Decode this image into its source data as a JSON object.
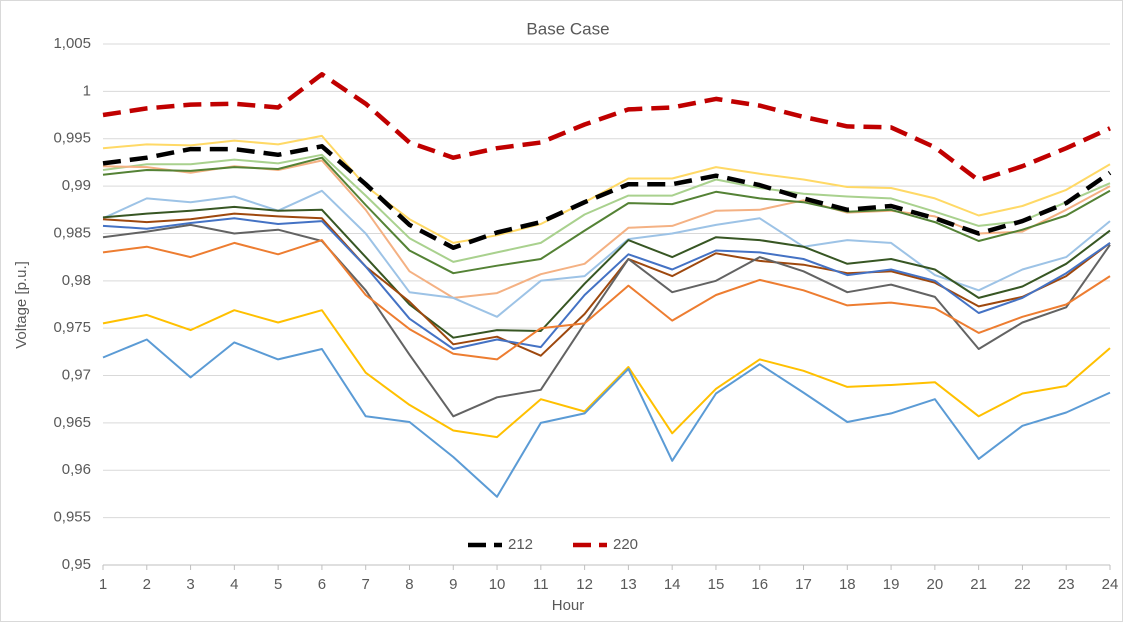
{
  "chart_data": {
    "type": "line",
    "title": "Base Case",
    "x_label": "Hour",
    "y_label": "Voltage [p.u.]",
    "x": [
      1,
      2,
      3,
      4,
      5,
      6,
      7,
      8,
      9,
      10,
      11,
      12,
      13,
      14,
      15,
      16,
      17,
      18,
      19,
      20,
      21,
      22,
      23,
      24
    ],
    "xlim": [
      1,
      24
    ],
    "xticks": [
      1,
      2,
      3,
      4,
      5,
      6,
      7,
      8,
      9,
      10,
      11,
      12,
      13,
      14,
      15,
      16,
      17,
      18,
      19,
      20,
      21,
      22,
      23,
      24
    ],
    "ylim": [
      0.95,
      1.005
    ],
    "yticks": [
      {
        "value": 0.95,
        "label": "0,95"
      },
      {
        "value": 0.955,
        "label": "0,955"
      },
      {
        "value": 0.96,
        "label": "0,96"
      },
      {
        "value": 0.965,
        "label": "0,965"
      },
      {
        "value": 0.97,
        "label": "0,97"
      },
      {
        "value": 0.975,
        "label": "0,975"
      },
      {
        "value": 0.98,
        "label": "0,98"
      },
      {
        "value": 0.985,
        "label": "0,985"
      },
      {
        "value": 0.99,
        "label": "0,99"
      },
      {
        "value": 0.995,
        "label": "0,995"
      },
      1,
      {
        "value": 1.005,
        "label": "1,005"
      }
    ],
    "grid": true,
    "legend": "bottom",
    "series": [
      {
        "color": "#ffd966",
        "values": [
          0.994,
          0.9944,
          0.9943,
          0.9948,
          0.9944,
          0.9953,
          0.99,
          0.9865,
          0.984,
          0.9848,
          0.986,
          0.9883,
          0.9908,
          0.9908,
          0.992,
          0.9913,
          0.9907,
          0.9899,
          0.9898,
          0.9887,
          0.9869,
          0.9879,
          0.9896,
          0.9923
        ]
      },
      {
        "color": "#a9d18e",
        "values": [
          0.9917,
          0.9923,
          0.9923,
          0.9928,
          0.9924,
          0.9933,
          0.989,
          0.9845,
          0.982,
          0.983,
          0.984,
          0.987,
          0.989,
          0.989,
          0.9907,
          0.9898,
          0.9892,
          0.9889,
          0.9887,
          0.9873,
          0.9858,
          0.9863,
          0.9883,
          0.9903
        ]
      },
      {
        "color": "#f4b183",
        "values": [
          0.9921,
          0.992,
          0.9914,
          0.9921,
          0.9917,
          0.9927,
          0.9875,
          0.981,
          0.9782,
          0.9787,
          0.9807,
          0.9818,
          0.9856,
          0.9858,
          0.9874,
          0.9875,
          0.9885,
          0.9872,
          0.9874,
          0.9868,
          0.985,
          0.9852,
          0.9875,
          0.99
        ]
      },
      {
        "color": "#548235",
        "values": [
          0.9912,
          0.9917,
          0.9916,
          0.992,
          0.9918,
          0.993,
          0.988,
          0.9832,
          0.9808,
          0.9816,
          0.9823,
          0.9853,
          0.9882,
          0.9881,
          0.9894,
          0.9887,
          0.9883,
          0.9873,
          0.9875,
          0.9862,
          0.9842,
          0.9854,
          0.9869,
          0.9895
        ]
      },
      {
        "color": "#9dc3e6",
        "values": [
          0.9866,
          0.9887,
          0.9883,
          0.9889,
          0.9874,
          0.9895,
          0.985,
          0.9788,
          0.9782,
          0.9762,
          0.98,
          0.9805,
          0.9844,
          0.985,
          0.9859,
          0.9866,
          0.9836,
          0.9843,
          0.984,
          0.9806,
          0.979,
          0.9812,
          0.9825,
          0.9863
        ]
      },
      {
        "color": "#375623",
        "values": [
          0.9867,
          0.9871,
          0.9874,
          0.9878,
          0.9874,
          0.9875,
          0.9825,
          0.9775,
          0.974,
          0.9748,
          0.9747,
          0.9797,
          0.9843,
          0.9825,
          0.9846,
          0.9843,
          0.9836,
          0.9818,
          0.9823,
          0.9812,
          0.9782,
          0.9794,
          0.9818,
          0.9853
        ]
      },
      {
        "color": "#9e480e",
        "values": [
          0.9865,
          0.9862,
          0.9865,
          0.9871,
          0.9868,
          0.9866,
          0.9815,
          0.9778,
          0.9733,
          0.9741,
          0.9721,
          0.9765,
          0.9823,
          0.9805,
          0.9829,
          0.9821,
          0.9817,
          0.9808,
          0.981,
          0.9798,
          0.9773,
          0.9783,
          0.9805,
          0.984
        ]
      },
      {
        "color": "#4472c4",
        "values": [
          0.9858,
          0.9855,
          0.9861,
          0.9866,
          0.986,
          0.9863,
          0.9815,
          0.976,
          0.9728,
          0.9738,
          0.973,
          0.9785,
          0.9828,
          0.9812,
          0.9832,
          0.983,
          0.9823,
          0.9806,
          0.9812,
          0.98,
          0.9766,
          0.9782,
          0.9808,
          0.984
        ]
      },
      {
        "color": "#636363",
        "values": [
          0.9846,
          0.9852,
          0.9859,
          0.985,
          0.9854,
          0.9842,
          0.979,
          0.9722,
          0.9657,
          0.9677,
          0.9685,
          0.9755,
          0.9823,
          0.9788,
          0.98,
          0.9825,
          0.981,
          0.9788,
          0.9796,
          0.9783,
          0.9728,
          0.9756,
          0.9772,
          0.9838
        ]
      },
      {
        "color": "#ed7d31",
        "values": [
          0.983,
          0.9836,
          0.9825,
          0.984,
          0.9828,
          0.9843,
          0.9785,
          0.9749,
          0.9723,
          0.9717,
          0.975,
          0.9755,
          0.9795,
          0.9758,
          0.9785,
          0.9801,
          0.979,
          0.9774,
          0.9777,
          0.9771,
          0.9745,
          0.9762,
          0.9775,
          0.9805
        ]
      },
      {
        "color": "#ffc000",
        "values": [
          0.9755,
          0.9764,
          0.9748,
          0.9769,
          0.9756,
          0.9769,
          0.9703,
          0.9669,
          0.9642,
          0.9635,
          0.9675,
          0.9662,
          0.9709,
          0.9639,
          0.9686,
          0.9717,
          0.9705,
          0.9688,
          0.969,
          0.9693,
          0.9657,
          0.9681,
          0.9689,
          0.9729
        ]
      },
      {
        "color": "#5b9bd5",
        "values": [
          0.9719,
          0.9738,
          0.9698,
          0.9735,
          0.9717,
          0.9728,
          0.9657,
          0.9651,
          0.9614,
          0.9572,
          0.965,
          0.966,
          0.9707,
          0.961,
          0.9681,
          0.9712,
          0.9682,
          0.9651,
          0.966,
          0.9675,
          0.9612,
          0.9647,
          0.9661,
          0.9682
        ]
      },
      {
        "name": "212",
        "color": "#000000",
        "line_style": "dashed",
        "values": [
          0.9924,
          0.993,
          0.9939,
          0.9939,
          0.9933,
          0.9942,
          0.9902,
          0.9859,
          0.9835,
          0.9851,
          0.9862,
          0.9883,
          0.9902,
          0.9902,
          0.9911,
          0.9901,
          0.9887,
          0.9875,
          0.9879,
          0.9866,
          0.985,
          0.9863,
          0.9882,
          0.9914
        ]
      },
      {
        "name": "220",
        "color": "#c00000",
        "line_style": "dashed",
        "values": [
          0.9975,
          0.9982,
          0.9986,
          0.9987,
          0.9983,
          1.0018,
          0.9987,
          0.9946,
          0.993,
          0.994,
          0.9946,
          0.9965,
          0.9981,
          0.9983,
          0.9992,
          0.9985,
          0.9973,
          0.9963,
          0.9962,
          0.9941,
          0.9906,
          0.9921,
          0.994,
          0.9961
        ]
      }
    ]
  }
}
